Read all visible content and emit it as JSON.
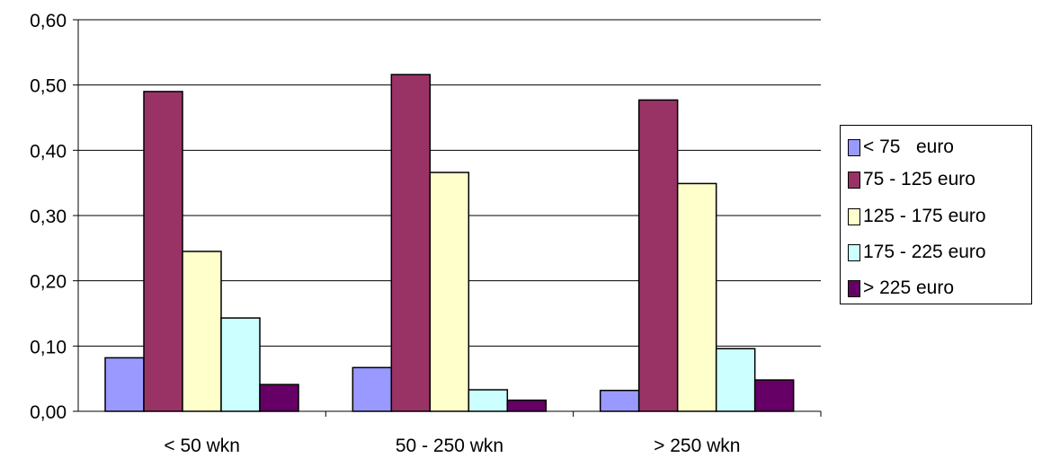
{
  "chart_data": {
    "type": "bar",
    "categories": [
      "< 50 wkn",
      "50 - 250 wkn",
      "> 250 wkn"
    ],
    "series": [
      {
        "name": "< 75   euro",
        "values": [
          0.082,
          0.067,
          0.032
        ],
        "color": "#9999ff"
      },
      {
        "name": "75 - 125 euro",
        "values": [
          0.49,
          0.516,
          0.477
        ],
        "color": "#993366"
      },
      {
        "name": "125 - 175 euro",
        "values": [
          0.245,
          0.366,
          0.349
        ],
        "color": "#ffffcc"
      },
      {
        "name": "175 - 225 euro",
        "values": [
          0.143,
          0.033,
          0.096
        ],
        "color": "#ccffff"
      },
      {
        "name": "> 225 euro",
        "values": [
          0.041,
          0.017,
          0.048
        ],
        "color": "#660066"
      }
    ],
    "y_ticks": [
      "0,00",
      "0,10",
      "0,20",
      "0,30",
      "0,40",
      "0,50",
      "0,60"
    ],
    "ylim": [
      0,
      0.6
    ],
    "grid": true,
    "legend_position": "right"
  }
}
